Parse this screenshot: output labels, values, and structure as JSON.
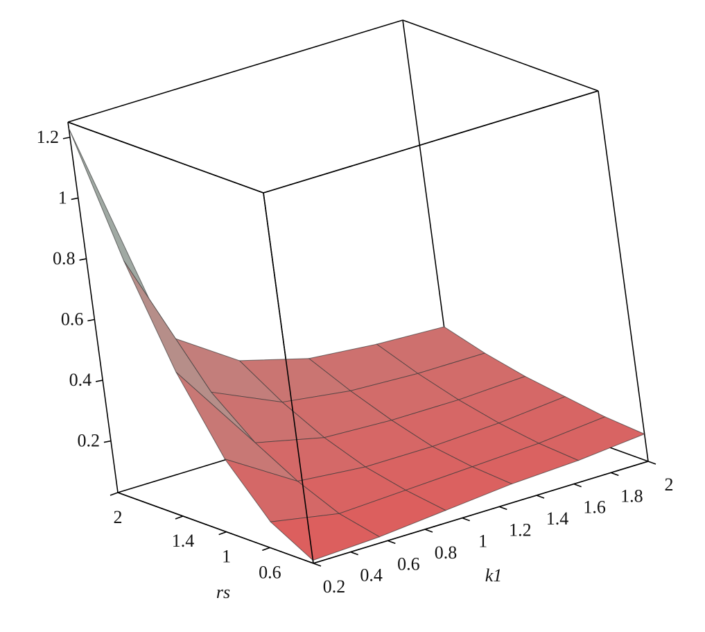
{
  "chart_data": {
    "type": "surface",
    "xlabel": "k1",
    "ylabel": "rs",
    "x": [
      0.2,
      0.56,
      0.92,
      1.28,
      1.64,
      2.0
    ],
    "y": [
      0.2,
      0.56,
      0.92,
      1.28,
      1.64,
      2.0
    ],
    "z": [
      [
        0.04,
        0.05,
        0.07,
        0.09,
        0.1,
        0.12
      ],
      [
        0.12,
        0.08,
        0.09,
        0.1,
        0.11,
        0.13
      ],
      [
        0.28,
        0.14,
        0.12,
        0.12,
        0.13,
        0.15
      ],
      [
        0.52,
        0.22,
        0.17,
        0.16,
        0.16,
        0.17
      ],
      [
        0.84,
        0.34,
        0.24,
        0.21,
        0.2,
        0.2
      ],
      [
        1.23,
        0.48,
        0.33,
        0.27,
        0.25,
        0.24
      ]
    ],
    "xlim": [
      0.2,
      2.0
    ],
    "ylim": [
      0.2,
      2.0
    ],
    "zlim": [
      0.03,
      1.25
    ],
    "xticks": [
      0.2,
      0.4,
      0.6,
      0.8,
      1.0,
      1.2,
      1.4,
      1.6,
      1.8,
      2.0
    ],
    "yticks": [
      0.6,
      1.0,
      1.4,
      2.0
    ],
    "zticks": [
      0.2,
      0.4,
      0.6,
      0.8,
      1.0,
      1.2
    ],
    "colormap": [
      "#e05a5a",
      "#6fe6da"
    ]
  }
}
